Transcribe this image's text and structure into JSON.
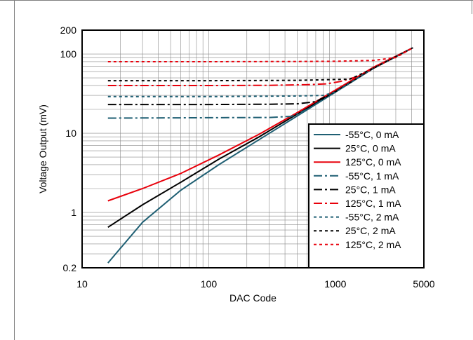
{
  "chart_data": {
    "type": "line",
    "title": "",
    "xlabel": "DAC Code",
    "ylabel": "Voltage Output (mV)",
    "x_scale": "log",
    "y_scale": "log",
    "xlim": [
      10,
      5000
    ],
    "ylim": [
      0.2,
      200
    ],
    "x_ticks": [
      10,
      100,
      1000,
      5000
    ],
    "x_tick_labels": [
      "10",
      "100",
      "1000",
      "5000"
    ],
    "y_ticks": [
      0.2,
      1,
      10,
      100,
      200
    ],
    "y_tick_labels": [
      "0.2",
      "1",
      "10",
      "100",
      "200"
    ],
    "grid": true,
    "legend_position": "bottom-right",
    "series": [
      {
        "name": "-55°C, 0 mA",
        "color": "#1f5f73",
        "dash": "solid",
        "points": [
          [
            16,
            0.23
          ],
          [
            30,
            0.75
          ],
          [
            60,
            1.9
          ],
          [
            120,
            4.0
          ],
          [
            250,
            8.3
          ],
          [
            500,
            16.5
          ],
          [
            1000,
            33
          ],
          [
            2000,
            66
          ],
          [
            4095,
            120
          ]
        ]
      },
      {
        "name": "25°C, 0 mA",
        "color": "#000000",
        "dash": "solid",
        "points": [
          [
            16,
            0.65
          ],
          [
            30,
            1.25
          ],
          [
            60,
            2.4
          ],
          [
            120,
            4.7
          ],
          [
            250,
            9.0
          ],
          [
            500,
            17.5
          ],
          [
            1000,
            34
          ],
          [
            2000,
            67
          ],
          [
            4095,
            120
          ]
        ]
      },
      {
        "name": "125°C, 0 mA",
        "color": "#e8000b",
        "dash": "solid",
        "points": [
          [
            16,
            1.4
          ],
          [
            30,
            2.0
          ],
          [
            60,
            3.1
          ],
          [
            120,
            5.3
          ],
          [
            250,
            9.7
          ],
          [
            500,
            18.2
          ],
          [
            1000,
            35
          ],
          [
            2000,
            68
          ],
          [
            4095,
            120
          ]
        ]
      },
      {
        "name": "-55°C, 1 mA",
        "color": "#1f5f73",
        "dash": "dashdot",
        "points": [
          [
            16,
            15.5
          ],
          [
            100,
            15.7
          ],
          [
            300,
            15.8
          ],
          [
            450,
            16.3
          ],
          [
            600,
            20
          ],
          [
            1000,
            33
          ],
          [
            2000,
            66
          ],
          [
            4095,
            120
          ]
        ]
      },
      {
        "name": "25°C, 1 mA",
        "color": "#000000",
        "dash": "dashdot",
        "points": [
          [
            16,
            23
          ],
          [
            100,
            23
          ],
          [
            300,
            23.2
          ],
          [
            500,
            23.5
          ],
          [
            700,
            25
          ],
          [
            1000,
            33.5
          ],
          [
            2000,
            66
          ],
          [
            4095,
            120
          ]
        ]
      },
      {
        "name": "125°C, 1 mA",
        "color": "#e8000b",
        "dash": "dashdot",
        "points": [
          [
            16,
            40
          ],
          [
            100,
            40
          ],
          [
            300,
            40.2
          ],
          [
            600,
            41
          ],
          [
            850,
            42
          ],
          [
            1100,
            45
          ],
          [
            1500,
            52
          ],
          [
            2000,
            66
          ],
          [
            4095,
            120
          ]
        ]
      },
      {
        "name": "-55°C, 2 mA",
        "color": "#1f5f73",
        "dash": "dotted",
        "points": [
          [
            16,
            29
          ],
          [
            100,
            29
          ],
          [
            500,
            29.5
          ],
          [
            800,
            30
          ],
          [
            1000,
            33
          ],
          [
            2000,
            66
          ],
          [
            4095,
            120
          ]
        ]
      },
      {
        "name": "25°C, 2 mA",
        "color": "#000000",
        "dash": "dotted",
        "points": [
          [
            16,
            46
          ],
          [
            100,
            46
          ],
          [
            500,
            46.5
          ],
          [
            900,
            47.5
          ],
          [
            1300,
            48
          ],
          [
            2000,
            66
          ],
          [
            4095,
            120
          ]
        ]
      },
      {
        "name": "125°C, 2 mA",
        "color": "#e8000b",
        "dash": "dotted",
        "points": [
          [
            16,
            80
          ],
          [
            100,
            80
          ],
          [
            500,
            80.5
          ],
          [
            1000,
            81
          ],
          [
            2000,
            83
          ],
          [
            3000,
            90
          ],
          [
            4095,
            120
          ]
        ]
      }
    ]
  }
}
